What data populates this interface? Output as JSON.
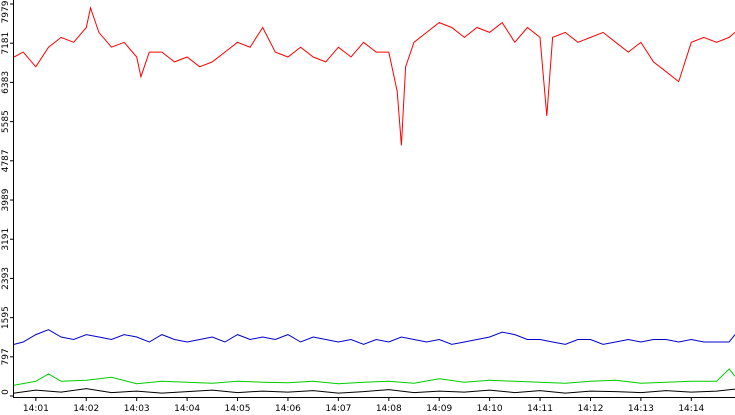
{
  "chart_data": {
    "type": "line",
    "title": "",
    "xlabel": "",
    "ylabel": "",
    "ylim": [
      0,
      7979
    ],
    "y_ticks": [
      "0",
      "797",
      "1595",
      "2393",
      "3191",
      "3989",
      "4787",
      "5585",
      "6383",
      "7181",
      "7979"
    ],
    "y_tick_values": [
      0,
      797,
      1595,
      2393,
      3191,
      3989,
      4787,
      5585,
      6383,
      7181,
      7979
    ],
    "x_ticks": [
      "14:01",
      "14:02",
      "14:03",
      "14:04",
      "14:05",
      "14:06",
      "14:07",
      "14:08",
      "14:09",
      "14:10",
      "14:11",
      "14:12",
      "14:13",
      "14:14"
    ],
    "grid": false,
    "legend": "none",
    "series": [
      {
        "color": "#ff0000",
        "x": [
          "14:00:34",
          "14:00:45",
          "14:01:00",
          "14:01:15",
          "14:01:30",
          "14:01:45",
          "14:02:00",
          "14:02:05",
          "14:02:15",
          "14:02:30",
          "14:02:45",
          "14:03:00",
          "14:03:05",
          "14:03:15",
          "14:03:30",
          "14:03:45",
          "14:04:00",
          "14:04:15",
          "14:04:30",
          "14:04:45",
          "14:05:00",
          "14:05:15",
          "14:05:30",
          "14:05:45",
          "14:06:00",
          "14:06:15",
          "14:06:30",
          "14:06:45",
          "14:07:00",
          "14:07:15",
          "14:07:30",
          "14:07:45",
          "14:08:00",
          "14:08:10",
          "14:08:15",
          "14:08:20",
          "14:08:30",
          "14:08:45",
          "14:09:00",
          "14:09:15",
          "14:09:30",
          "14:09:45",
          "14:10:00",
          "14:10:15",
          "14:10:30",
          "14:10:45",
          "14:11:00",
          "14:11:08",
          "14:11:15",
          "14:11:30",
          "14:11:45",
          "14:12:00",
          "14:12:15",
          "14:12:30",
          "14:12:45",
          "14:13:00",
          "14:13:15",
          "14:13:30",
          "14:13:45",
          "14:14:00",
          "14:14:15",
          "14:14:30",
          "14:14:45",
          "14:14:52"
        ],
        "values": [
          6900,
          7000,
          6700,
          7100,
          7300,
          7200,
          7500,
          7900,
          7400,
          7100,
          7200,
          6900,
          6500,
          7000,
          7000,
          6800,
          6900,
          6700,
          6800,
          7000,
          7200,
          7100,
          7500,
          7000,
          6900,
          7100,
          6900,
          6800,
          7100,
          6900,
          7200,
          7000,
          7000,
          6200,
          5100,
          6700,
          7200,
          7400,
          7600,
          7500,
          7300,
          7500,
          7400,
          7600,
          7200,
          7500,
          7300,
          5700,
          7300,
          7400,
          7200,
          7300,
          7400,
          7200,
          7000,
          7200,
          6800,
          6600,
          6400,
          7200,
          7300,
          7200,
          7300,
          7400
        ]
      },
      {
        "color": "#0000cc",
        "x": [
          "14:00:34",
          "14:00:45",
          "14:01:00",
          "14:01:15",
          "14:01:30",
          "14:01:45",
          "14:02:00",
          "14:02:15",
          "14:02:30",
          "14:02:45",
          "14:03:00",
          "14:03:15",
          "14:03:30",
          "14:03:45",
          "14:04:00",
          "14:04:15",
          "14:04:30",
          "14:04:45",
          "14:05:00",
          "14:05:15",
          "14:05:30",
          "14:05:45",
          "14:06:00",
          "14:06:15",
          "14:06:30",
          "14:06:45",
          "14:07:00",
          "14:07:15",
          "14:07:30",
          "14:07:45",
          "14:08:00",
          "14:08:15",
          "14:08:30",
          "14:08:45",
          "14:09:00",
          "14:09:15",
          "14:09:30",
          "14:09:45",
          "14:10:00",
          "14:10:15",
          "14:10:30",
          "14:10:45",
          "14:11:00",
          "14:11:15",
          "14:11:30",
          "14:11:45",
          "14:12:00",
          "14:12:15",
          "14:12:30",
          "14:12:45",
          "14:13:00",
          "14:13:15",
          "14:13:30",
          "14:13:45",
          "14:14:00",
          "14:14:15",
          "14:14:30",
          "14:14:45",
          "14:14:52"
        ],
        "values": [
          1050,
          1100,
          1250,
          1350,
          1200,
          1150,
          1250,
          1200,
          1150,
          1250,
          1200,
          1100,
          1250,
          1150,
          1100,
          1150,
          1200,
          1100,
          1250,
          1150,
          1200,
          1150,
          1250,
          1100,
          1200,
          1150,
          1100,
          1150,
          1050,
          1150,
          1100,
          1200,
          1150,
          1100,
          1150,
          1050,
          1100,
          1150,
          1200,
          1300,
          1250,
          1150,
          1150,
          1100,
          1050,
          1150,
          1150,
          1050,
          1100,
          1150,
          1100,
          1150,
          1150,
          1100,
          1150,
          1100,
          1100,
          1100,
          1250
        ]
      },
      {
        "color": "#00cc00",
        "x": [
          "14:00:34",
          "14:01:00",
          "14:01:15",
          "14:01:30",
          "14:02:00",
          "14:02:30",
          "14:03:00",
          "14:03:30",
          "14:04:00",
          "14:04:30",
          "14:05:00",
          "14:05:30",
          "14:06:00",
          "14:06:30",
          "14:07:00",
          "14:07:30",
          "14:08:00",
          "14:08:30",
          "14:09:00",
          "14:09:30",
          "14:10:00",
          "14:10:30",
          "14:11:00",
          "14:11:30",
          "14:12:00",
          "14:12:30",
          "14:13:00",
          "14:13:30",
          "14:14:00",
          "14:14:30",
          "14:14:45",
          "14:14:52"
        ],
        "values": [
          220,
          300,
          450,
          300,
          320,
          380,
          250,
          300,
          280,
          260,
          300,
          280,
          270,
          300,
          250,
          280,
          300,
          260,
          350,
          280,
          320,
          300,
          280,
          260,
          300,
          320,
          260,
          280,
          300,
          300,
          550,
          400
        ]
      },
      {
        "color": "#000000",
        "x": [
          "14:00:34",
          "14:01:00",
          "14:01:30",
          "14:02:00",
          "14:02:30",
          "14:03:00",
          "14:03:30",
          "14:04:00",
          "14:04:30",
          "14:05:00",
          "14:05:30",
          "14:06:00",
          "14:06:30",
          "14:07:00",
          "14:07:30",
          "14:08:00",
          "14:08:30",
          "14:09:00",
          "14:09:30",
          "14:10:00",
          "14:10:30",
          "14:11:00",
          "14:11:30",
          "14:12:00",
          "14:12:30",
          "14:13:00",
          "14:13:30",
          "14:14:00",
          "14:14:30",
          "14:14:52"
        ],
        "values": [
          60,
          120,
          80,
          150,
          70,
          100,
          60,
          90,
          120,
          70,
          100,
          80,
          110,
          60,
          90,
          130,
          70,
          100,
          80,
          120,
          70,
          110,
          60,
          100,
          90,
          70,
          110,
          80,
          100,
          140
        ]
      }
    ]
  }
}
